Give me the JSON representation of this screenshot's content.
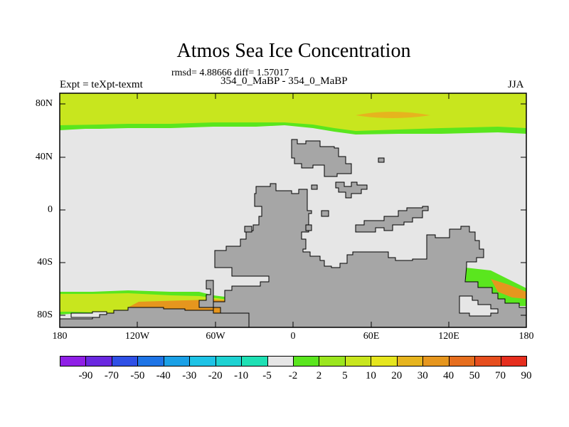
{
  "map": {
    "title": "Atmos Sea Ice Concentration",
    "stats": "rmsd= 4.88666 diff= 1.57017",
    "experiment": "Expt = teXpt-texmt",
    "comparison": "354_0_MaBP - 354_0_MaBP",
    "season": "JJA",
    "lat_ticks": [
      "80N",
      "40N",
      "0",
      "40S",
      "80S"
    ],
    "lon_ticks": [
      "180",
      "120W",
      "60W",
      "0",
      "60E",
      "120E",
      "180"
    ],
    "land_color": "#a6a6a6",
    "ocean_color": "#e6e6e6"
  },
  "legend": {
    "colors": [
      "#8f1fe6",
      "#6a28e0",
      "#2f50e6",
      "#1e74e6",
      "#1aa0e6",
      "#1ec3e6",
      "#1ed2d2",
      "#1ee0b4",
      "#e6e6e6",
      "#5ae61e",
      "#9be61e",
      "#c8e61e",
      "#e6e61e",
      "#e6b41e",
      "#e6961e",
      "#e66e1e",
      "#e64e1e",
      "#e62e1e"
    ],
    "labels": [
      "-90",
      "-70",
      "-50",
      "-40",
      "-30",
      "-20",
      "-10",
      "-5",
      "-2",
      "2",
      "5",
      "10",
      "20",
      "30",
      "40",
      "50",
      "70",
      "90"
    ]
  }
}
